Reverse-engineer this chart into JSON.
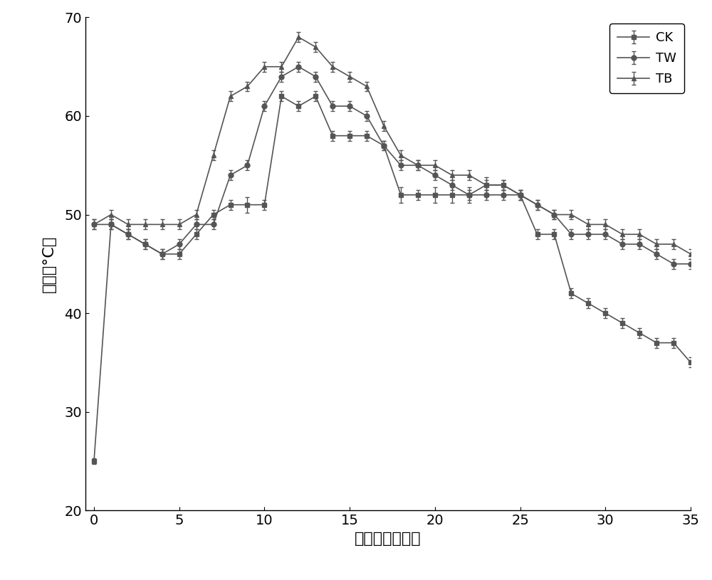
{
  "CK": {
    "x": [
      0,
      1,
      2,
      3,
      4,
      5,
      6,
      7,
      8,
      9,
      10,
      11,
      12,
      13,
      14,
      15,
      16,
      17,
      18,
      19,
      20,
      21,
      22,
      23,
      24,
      25,
      26,
      27,
      28,
      29,
      30,
      31,
      32,
      33,
      34,
      35
    ],
    "y": [
      25,
      49,
      48,
      47,
      46,
      46,
      48,
      50,
      51,
      51,
      51,
      62,
      61,
      62,
      58,
      58,
      58,
      57,
      52,
      52,
      52,
      52,
      52,
      53,
      53,
      52,
      48,
      48,
      42,
      41,
      40,
      39,
      38,
      37,
      37,
      35
    ],
    "yerr": [
      0.3,
      0.5,
      0.5,
      0.5,
      0.5,
      0.5,
      0.5,
      0.5,
      0.5,
      0.8,
      0.5,
      0.5,
      0.5,
      0.5,
      0.5,
      0.5,
      0.5,
      0.5,
      0.8,
      0.5,
      0.8,
      0.8,
      0.8,
      0.8,
      0.5,
      0.5,
      0.5,
      0.5,
      0.5,
      0.5,
      0.5,
      0.5,
      0.5,
      0.5,
      0.5,
      0.5
    ]
  },
  "TW": {
    "x": [
      0,
      1,
      2,
      3,
      4,
      5,
      6,
      7,
      8,
      9,
      10,
      11,
      12,
      13,
      14,
      15,
      16,
      17,
      18,
      19,
      20,
      21,
      22,
      23,
      24,
      25,
      26,
      27,
      28,
      29,
      30,
      31,
      32,
      33,
      34,
      35
    ],
    "y": [
      49,
      49,
      48,
      47,
      46,
      47,
      49,
      49,
      54,
      55,
      61,
      64,
      65,
      64,
      61,
      61,
      60,
      57,
      55,
      55,
      54,
      53,
      52,
      52,
      52,
      52,
      51,
      50,
      48,
      48,
      48,
      47,
      47,
      46,
      45,
      45
    ],
    "yerr": [
      0.5,
      0.5,
      0.5,
      0.5,
      0.5,
      0.5,
      0.5,
      0.5,
      0.5,
      0.5,
      0.5,
      0.5,
      0.5,
      0.5,
      0.5,
      0.5,
      0.5,
      0.5,
      0.5,
      0.5,
      0.5,
      0.5,
      0.5,
      0.5,
      0.5,
      0.5,
      0.5,
      0.5,
      0.5,
      0.5,
      0.5,
      0.5,
      0.5,
      0.5,
      0.5,
      0.5
    ]
  },
  "TB": {
    "x": [
      0,
      1,
      2,
      3,
      4,
      5,
      6,
      7,
      8,
      9,
      10,
      11,
      12,
      13,
      14,
      15,
      16,
      17,
      18,
      19,
      20,
      21,
      22,
      23,
      24,
      25,
      26,
      27,
      28,
      29,
      30,
      31,
      32,
      33,
      34,
      35
    ],
    "y": [
      49,
      50,
      49,
      49,
      49,
      49,
      50,
      56,
      62,
      63,
      65,
      65,
      68,
      67,
      65,
      64,
      63,
      59,
      56,
      55,
      55,
      54,
      54,
      53,
      53,
      52,
      51,
      50,
      50,
      49,
      49,
      48,
      48,
      47,
      47,
      46
    ],
    "yerr": [
      0.5,
      0.5,
      0.5,
      0.5,
      0.5,
      0.5,
      0.5,
      0.5,
      0.5,
      0.5,
      0.5,
      0.5,
      0.5,
      0.5,
      0.5,
      0.5,
      0.5,
      0.5,
      0.5,
      0.5,
      0.5,
      0.5,
      0.5,
      0.5,
      0.5,
      0.5,
      0.5,
      0.5,
      0.5,
      0.5,
      0.5,
      0.5,
      0.5,
      0.5,
      0.5,
      0.5
    ]
  },
  "color": "#555555",
  "xlabel": "堆肥时间（天）",
  "ylabel": "温度（°C）",
  "xlim": [
    -0.5,
    35
  ],
  "ylim": [
    20,
    70
  ],
  "xticks": [
    0,
    5,
    10,
    15,
    20,
    25,
    30,
    35
  ],
  "yticks": [
    20,
    30,
    40,
    50,
    60,
    70
  ],
  "legend_labels": [
    "CK",
    "TW",
    "TB"
  ],
  "legend_markers": [
    "s",
    "o",
    "^"
  ]
}
